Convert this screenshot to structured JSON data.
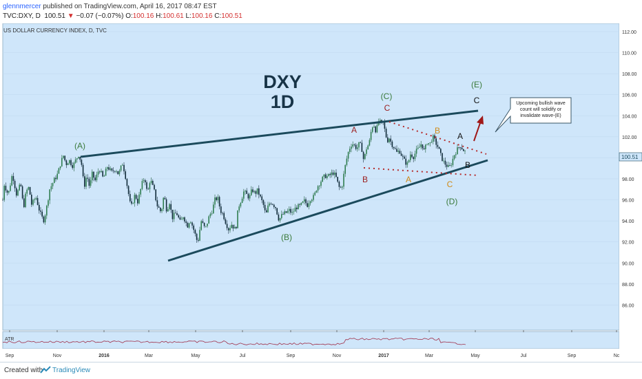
{
  "header": {
    "username": "glennmercer",
    "published": "published on TradingView.com, April 16, 2017 08:47 EST",
    "symbol": "TVC:DXY, D",
    "last": "100.51",
    "change": "−0.07 (−0.07%)",
    "o_label": "O:",
    "o_val": "100.16",
    "h_label": "H:",
    "h_val": "100.61",
    "l_label": "L:",
    "l_val": "100.16",
    "c_label": "C:",
    "c_val": "100.51"
  },
  "footer": {
    "created_with": "Created with",
    "brand": "TradingView"
  },
  "colors": {
    "bg": "#cfe6fa",
    "line": "#1b4a5c",
    "up": "#1d5c3a",
    "down": "#153040",
    "red_label": "#9b1c1c",
    "orange_label": "#d08a16",
    "green_label": "#3a7a3a",
    "dotted": "#b52828"
  },
  "chart_data": {
    "type": "candlestick",
    "title": "US DOLLAR CURRENCY INDEX, D, TVC",
    "overlay_title": [
      "DXY",
      "1D"
    ],
    "price_now": "100.51",
    "y_axis": {
      "min": 84,
      "max": 112,
      "ticks": [
        "112.00",
        "110.00",
        "108.00",
        "106.00",
        "104.00",
        "102.00",
        "100.00",
        "98.00",
        "96.00",
        "94.00",
        "92.00",
        "90.00",
        "88.00",
        "86.00"
      ]
    },
    "x_axis": {
      "ticks": [
        "Sep",
        "Nov",
        "2016",
        "Mar",
        "May",
        "Jul",
        "Sep",
        "Nov",
        "2017",
        "Mar",
        "May",
        "Jul",
        "Sep",
        "Nc"
      ]
    },
    "wave_labels": [
      {
        "text": "(A)",
        "color": "green"
      },
      {
        "text": "(B)",
        "color": "green"
      },
      {
        "text": "(C)",
        "color": "green"
      },
      {
        "text": "(D)",
        "color": "green"
      },
      {
        "text": "(E)",
        "color": "green"
      },
      {
        "text": "A",
        "color": "red"
      },
      {
        "text": "B",
        "color": "red"
      },
      {
        "text": "C",
        "color": "red"
      },
      {
        "text": "A",
        "color": "orange"
      },
      {
        "text": "B",
        "color": "orange"
      },
      {
        "text": "C",
        "color": "orange"
      },
      {
        "text": "A",
        "color": "black"
      },
      {
        "text": "B",
        "color": "black"
      },
      {
        "text": "C",
        "color": "black"
      }
    ],
    "callout": [
      "Upcoming bullish wave",
      "count will solidify or",
      "invalidate wave-(E)"
    ],
    "indicator": "ATR",
    "price_path": [
      [
        0,
        93.0
      ],
      [
        6,
        97.5
      ],
      [
        12,
        96.5
      ],
      [
        18,
        98.5
      ],
      [
        24,
        96.5
      ],
      [
        30,
        97.5
      ],
      [
        34,
        95.2
      ],
      [
        38,
        96.8
      ],
      [
        42,
        97.2
      ],
      [
        46,
        95.5
      ],
      [
        52,
        96.3
      ],
      [
        58,
        94.8
      ],
      [
        63,
        94.0
      ],
      [
        67,
        95.0
      ],
      [
        72,
        97.0
      ],
      [
        78,
        97.8
      ],
      [
        84,
        98.5
      ],
      [
        88,
        99.5
      ],
      [
        92,
        100.2
      ],
      [
        96,
        99.4
      ],
      [
        100,
        99.8
      ],
      [
        106,
        99.2
      ],
      [
        110,
        99.8
      ],
      [
        114,
        100.3
      ],
      [
        118,
        99.6
      ],
      [
        122,
        97.2
      ],
      [
        126,
        98.4
      ],
      [
        130,
        97.2
      ],
      [
        134,
        98.5
      ],
      [
        138,
        97.8
      ],
      [
        144,
        99.0
      ],
      [
        150,
        98.0
      ],
      [
        156,
        99.2
      ],
      [
        162,
        98.6
      ],
      [
        168,
        99.0
      ],
      [
        172,
        98.4
      ],
      [
        178,
        99.5
      ],
      [
        182,
        98.3
      ],
      [
        186,
        96.8
      ],
      [
        190,
        95.2
      ],
      [
        196,
        96.5
      ],
      [
        200,
        95.8
      ],
      [
        206,
        97.5
      ],
      [
        210,
        98.2
      ],
      [
        214,
        96.5
      ],
      [
        218,
        98.0
      ],
      [
        224,
        96.8
      ],
      [
        228,
        95.5
      ],
      [
        234,
        94.8
      ],
      [
        238,
        96.5
      ],
      [
        242,
        95.0
      ],
      [
        246,
        95.8
      ],
      [
        250,
        94.3
      ],
      [
        256,
        94.8
      ],
      [
        262,
        93.8
      ],
      [
        266,
        94.5
      ],
      [
        272,
        93.5
      ],
      [
        276,
        94.2
      ],
      [
        282,
        93.0
      ],
      [
        287,
        91.9
      ],
      [
        292,
        94.0
      ],
      [
        298,
        93.2
      ],
      [
        304,
        94.5
      ],
      [
        308,
        95.0
      ],
      [
        312,
        96.0
      ],
      [
        316,
        96.2
      ],
      [
        320,
        95.0
      ],
      [
        324,
        94.6
      ],
      [
        328,
        93.8
      ],
      [
        332,
        93.2
      ],
      [
        336,
        93.7
      ],
      [
        342,
        93.1
      ],
      [
        346,
        95.3
      ],
      [
        350,
        96.0
      ],
      [
        354,
        96.8
      ],
      [
        358,
        96.5
      ],
      [
        362,
        96.2
      ],
      [
        366,
        97.0
      ],
      [
        370,
        96.6
      ],
      [
        374,
        96.9
      ],
      [
        378,
        96.2
      ],
      [
        382,
        95.6
      ],
      [
        386,
        94.5
      ],
      [
        390,
        95.6
      ],
      [
        394,
        95.8
      ],
      [
        400,
        95.3
      ],
      [
        405,
        94.1
      ],
      [
        410,
        94.6
      ],
      [
        416,
        94.8
      ],
      [
        420,
        95.0
      ],
      [
        424,
        94.7
      ],
      [
        430,
        95.3
      ],
      [
        436,
        95.4
      ],
      [
        442,
        95.9
      ],
      [
        446,
        95.5
      ],
      [
        450,
        96.1
      ],
      [
        456,
        96.3
      ],
      [
        460,
        97.2
      ],
      [
        464,
        97.6
      ],
      [
        468,
        98.0
      ],
      [
        472,
        98.3
      ],
      [
        476,
        98.2
      ],
      [
        480,
        98.4
      ],
      [
        484,
        98.6
      ],
      [
        488,
        98.1
      ],
      [
        492,
        97.2
      ],
      [
        496,
        97.1
      ],
      [
        500,
        98.8
      ],
      [
        502,
        99.5
      ],
      [
        505,
        100.4
      ],
      [
        508,
        101.0
      ],
      [
        511,
        101.4
      ],
      [
        514,
        101.2
      ],
      [
        518,
        100.9
      ],
      [
        522,
        101.4
      ],
      [
        526,
        100.7
      ],
      [
        528,
        99.7
      ],
      [
        532,
        100.9
      ],
      [
        536,
        101.4
      ],
      [
        540,
        103.0
      ],
      [
        543,
        103.1
      ],
      [
        546,
        102.5
      ],
      [
        550,
        103.6
      ],
      [
        553,
        103.2
      ],
      [
        556,
        103.4
      ],
      [
        559,
        102.5
      ],
      [
        562,
        101.6
      ],
      [
        565,
        101.9
      ],
      [
        568,
        101.4
      ],
      [
        572,
        101.0
      ],
      [
        576,
        100.5
      ],
      [
        580,
        100.7
      ],
      [
        584,
        100.1
      ],
      [
        588,
        99.6
      ],
      [
        592,
        99.4
      ],
      [
        596,
        100.4
      ],
      [
        600,
        100.1
      ],
      [
        604,
        100.6
      ],
      [
        608,
        100.9
      ],
      [
        612,
        101.4
      ],
      [
        616,
        100.6
      ],
      [
        620,
        101.5
      ],
      [
        624,
        101.3
      ],
      [
        628,
        102.0
      ],
      [
        632,
        101.5
      ],
      [
        636,
        101.0
      ],
      [
        640,
        100.2
      ],
      [
        644,
        99.6
      ],
      [
        648,
        99.3
      ],
      [
        652,
        99.0
      ],
      [
        656,
        99.6
      ],
      [
        660,
        100.4
      ],
      [
        664,
        100.8
      ],
      [
        668,
        101.2
      ],
      [
        672,
        100.8
      ],
      [
        676,
        100.5
      ]
    ]
  }
}
